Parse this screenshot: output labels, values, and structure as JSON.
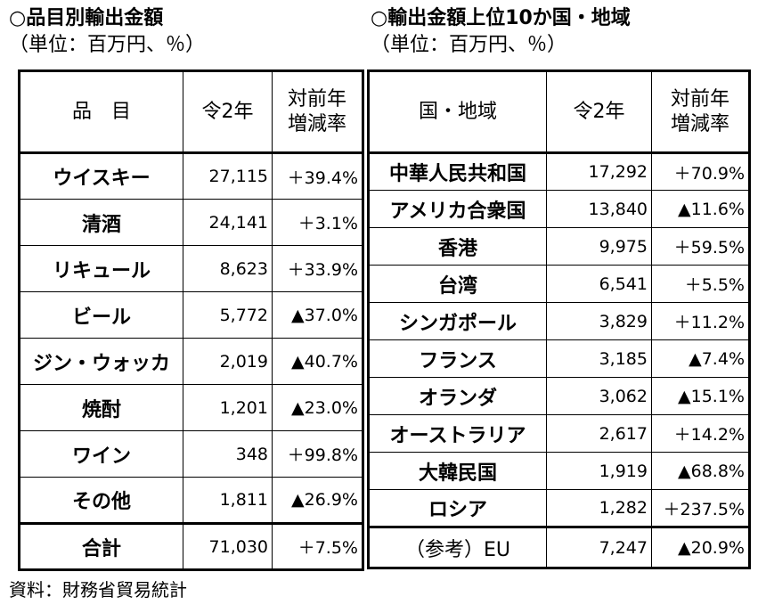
{
  "left": {
    "title": "○品目別輸出金額",
    "unit": "（単位：百万円、％）",
    "headers": {
      "item": "品　目",
      "year": "令2年",
      "rate": "対前年\n増減率"
    },
    "rows": [
      {
        "name": "ウイスキー",
        "value": "27,115",
        "rate": "＋39.4%"
      },
      {
        "name": "清酒",
        "value": "24,141",
        "rate": "＋3.1%"
      },
      {
        "name": "リキュール",
        "value": "8,623",
        "rate": "＋33.9%"
      },
      {
        "name": "ビール",
        "value": "5,772",
        "rate": "▲37.0%"
      },
      {
        "name": "ジン・ウォッカ",
        "value": "2,019",
        "rate": "▲40.7%"
      },
      {
        "name": "焼酎",
        "value": "1,201",
        "rate": "▲23.0%"
      },
      {
        "name": "ワイン",
        "value": "348",
        "rate": "＋99.8%"
      },
      {
        "name": "その他",
        "value": "1,811",
        "rate": "▲26.9%"
      }
    ],
    "total": {
      "name": "合計",
      "value": "71,030",
      "rate": "＋7.5%"
    }
  },
  "right": {
    "title": "○輸出金額上位10か国・地域",
    "unit": "（単位：百万円、％）",
    "headers": {
      "country": "国・地域",
      "year": "令2年",
      "rate": "対前年\n増減率"
    },
    "rows": [
      {
        "name": "中華人民共和国",
        "value": "17,292",
        "rate": "＋70.9%"
      },
      {
        "name": "アメリカ合衆国",
        "value": "13,840",
        "rate": "▲11.6%"
      },
      {
        "name": "香港",
        "value": "9,975",
        "rate": "＋59.5%"
      },
      {
        "name": "台湾",
        "value": "6,541",
        "rate": "＋5.5%"
      },
      {
        "name": "シンガポール",
        "value": "3,829",
        "rate": "＋11.2%"
      },
      {
        "name": "フランス",
        "value": "3,185",
        "rate": "▲7.4%"
      },
      {
        "name": "オランダ",
        "value": "3,062",
        "rate": "▲15.1%"
      },
      {
        "name": "オーストラリア",
        "value": "2,617",
        "rate": "＋14.2%"
      },
      {
        "name": "大韓民国",
        "value": "1,919",
        "rate": "▲68.8%"
      },
      {
        "name": "ロシア",
        "value": "1,282",
        "rate": "＋237.5%"
      }
    ],
    "reference": {
      "name": "（参考）EU",
      "value": "7,247",
      "rate": "▲20.9%"
    }
  },
  "source": "資料：財務省貿易統計"
}
